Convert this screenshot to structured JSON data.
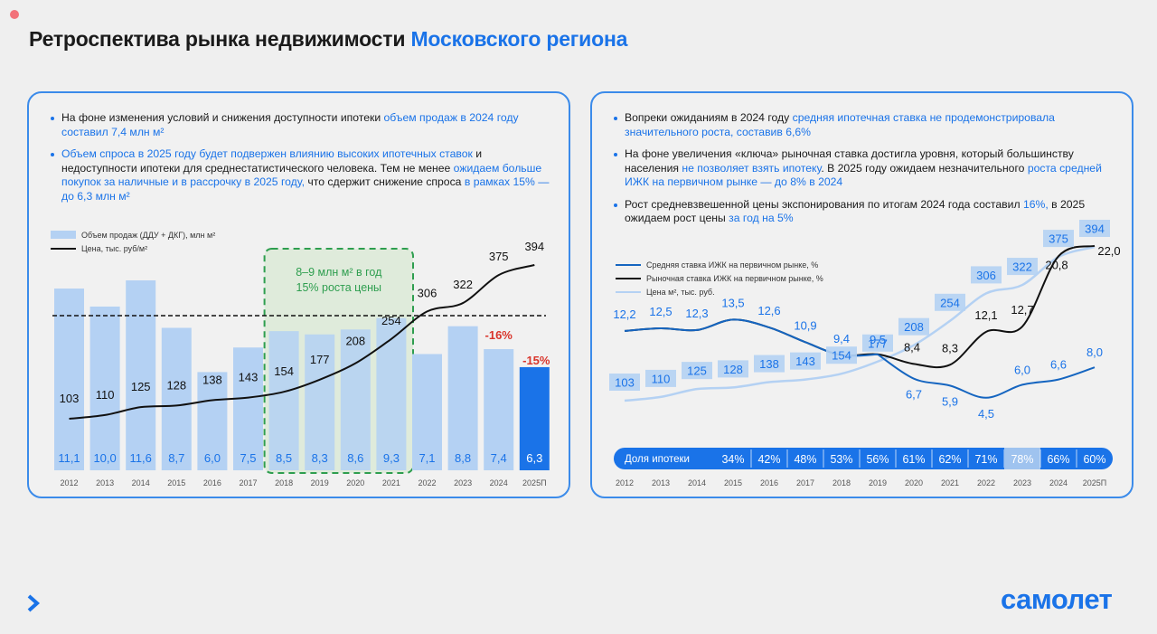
{
  "page": {
    "title_main": "Ретроспектива рынка недвижимости",
    "title_accent": "Московского региона",
    "logo": "самолет"
  },
  "left_panel": {
    "bullets": [
      [
        {
          "t": "На фоне изменения условий и снижения доступности ипотеки ",
          "hl": false
        },
        {
          "t": "объем продаж в 2024 году составил 7,4 млн м²",
          "hl": true
        }
      ],
      [
        {
          "t": "Объем спроса в 2025 году будет подвержен влиянию высоких ипотечных ставок",
          "hl": true
        },
        {
          "t": " и недоступности ипотеки для среднестатистического человека. Тем не менее ",
          "hl": false
        },
        {
          "t": "ожидаем больше покупок за наличные и в рассрочку в 2025 году,",
          "hl": true
        },
        {
          "t": " что сдержит снижение спроса ",
          "hl": false
        },
        {
          "t": "в рамках 15% — до 6,3 млн м²",
          "hl": true
        }
      ]
    ]
  },
  "right_panel": {
    "bullets": [
      [
        {
          "t": "Вопреки ожиданиям в 2024 году ",
          "hl": false
        },
        {
          "t": "средняя ипотечная ставка не продемонстрировала значительного роста, составив 6,6%",
          "hl": true
        }
      ],
      [
        {
          "t": "На фоне увеличения «ключа» рыночная ставка достигла уровня, который большинству населения ",
          "hl": false
        },
        {
          "t": "не позволяет взять ипотеку",
          "hl": true
        },
        {
          "t": ". В 2025 году ожидаем незначительного ",
          "hl": false
        },
        {
          "t": "роста средней ИЖК на первичном рынке — до 8% в 2024",
          "hl": true
        }
      ],
      [
        {
          "t": "Рост средневзвешенной цены экспонирования по итогам 2024 года составил ",
          "hl": false
        },
        {
          "t": "16%,",
          "hl": true
        },
        {
          "t": " в 2025 ожидаем рост цены ",
          "hl": false
        },
        {
          "t": "за год на 5%",
          "hl": true
        }
      ]
    ]
  },
  "colors": {
    "bar_light": "#b4d1f3",
    "bar_forecast": "#1a73e8",
    "accent": "#1a73e8",
    "red": "#d9352b",
    "green": "#2e9e4f",
    "green_fill": "#cfe6c8",
    "dark_blue": "#1565c0",
    "light_line": "#b4d1f3"
  },
  "chart_data": [
    {
      "type": "bar",
      "categories": [
        "2012",
        "2013",
        "2014",
        "2015",
        "2016",
        "2017",
        "2018",
        "2019",
        "2020",
        "2021",
        "2022",
        "2023",
        "2024",
        "2025П"
      ],
      "series": [
        {
          "name": "Объем продаж (ДДУ + ДКГ), млн м²",
          "values": [
            11.1,
            10.0,
            11.6,
            8.7,
            6.0,
            7.5,
            8.5,
            8.3,
            8.6,
            9.3,
            7.1,
            8.8,
            7.4,
            6.3
          ],
          "labels": [
            "11,1",
            "10,0",
            "11,6",
            "8,7",
            "6,0",
            "7,5",
            "8,5",
            "8,3",
            "8,6",
            "9,3",
            "7,1",
            "8,8",
            "7,4",
            "6,3"
          ]
        },
        {
          "name": "Цена, тыс. руб/м²",
          "type": "line",
          "values": [
            103,
            110,
            125,
            128,
            138,
            143,
            154,
            177,
            208,
            254,
            306,
            322,
            375,
            394
          ],
          "labels": [
            "103",
            "110",
            "125",
            "128",
            "138",
            "143",
            "154",
            "177",
            "208",
            "254",
            "306",
            "322",
            "375",
            "394"
          ]
        }
      ],
      "annotations": {
        "box_text_1": "8–9 млн м² в год",
        "box_text_2": "15% роста цены",
        "change_2024": "-16%",
        "change_2025": "-15%"
      },
      "ylim": [
        0,
        12
      ]
    },
    {
      "type": "line",
      "x": [
        "2012",
        "2013",
        "2014",
        "2015",
        "2016",
        "2017",
        "2018",
        "2019",
        "2020",
        "2021",
        "2022",
        "2023",
        "2024",
        "2025П"
      ],
      "series": [
        {
          "name": "Средняя ставка ИЖК на первичном рынке, %",
          "values": [
            null,
            null,
            null,
            null,
            null,
            null,
            null,
            9.5,
            6.7,
            5.9,
            4.5,
            6.0,
            6.6,
            8.0
          ],
          "labels": [
            "",
            "",
            "",
            "",
            "",
            "",
            "",
            "9,5",
            "6,7",
            "5,9",
            "4,5",
            "6,0",
            "6,6",
            "8,0"
          ]
        },
        {
          "name": "Рыночная ставка ИЖК на первичном рынке, %",
          "values": [
            12.2,
            12.5,
            12.3,
            13.5,
            12.6,
            10.9,
            9.4,
            9.5,
            8.4,
            8.3,
            12.1,
            12.7,
            20.8,
            22.0
          ],
          "labels": [
            "12,2",
            "12,5",
            "12,3",
            "13,5",
            "12,6",
            "10,9",
            "9,4",
            "",
            "8,4",
            "8,3",
            "12,1",
            "12,7",
            "20,8",
            "22,0"
          ]
        },
        {
          "name": "Цена м², тыс. руб.",
          "values": [
            103,
            110,
            125,
            128,
            138,
            143,
            154,
            177,
            208,
            254,
            306,
            322,
            375,
            394
          ],
          "labels": [
            "103",
            "110",
            "125",
            "128",
            "138",
            "143",
            "154",
            "177",
            "208",
            "254",
            "306",
            "322",
            "375",
            "394"
          ]
        }
      ],
      "mortgage_share": {
        "label": "Доля ипотеки",
        "values": [
          "34%",
          "42%",
          "48%",
          "53%",
          "56%",
          "61%",
          "62%",
          "71%",
          "78%",
          "66%",
          "60%"
        ]
      }
    }
  ]
}
